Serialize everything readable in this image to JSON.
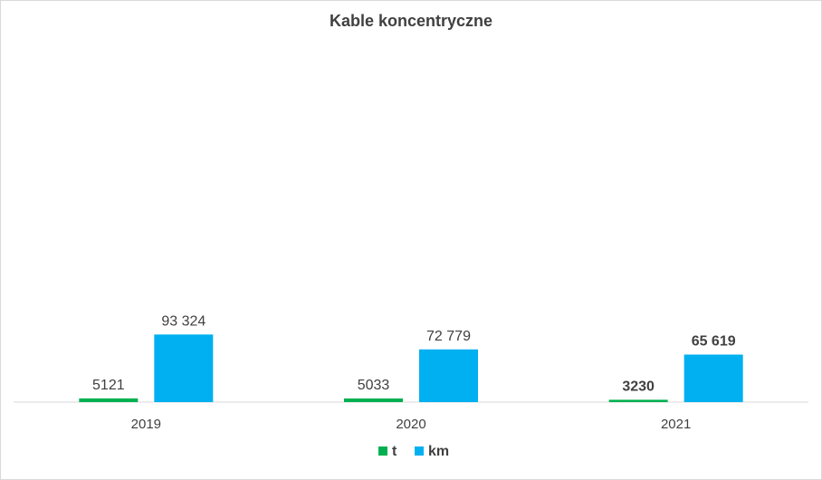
{
  "chart_data": {
    "type": "bar",
    "title": "Kable koncentryczne",
    "categories": [
      "2019",
      "2020",
      "2021"
    ],
    "series": [
      {
        "name": "t",
        "color": "#00b050",
        "values": [
          5121,
          5033,
          3230
        ],
        "labels": [
          "5121",
          "5033",
          "3230"
        ],
        "bold_labels": [
          false,
          false,
          true
        ]
      },
      {
        "name": "km",
        "color": "#00b0f0",
        "values": [
          93324,
          72779,
          65619
        ],
        "labels": [
          "93 324",
          "72 779",
          "65 619"
        ],
        "bold_labels": [
          false,
          false,
          true
        ]
      }
    ],
    "ylim": [
      0,
      500000
    ],
    "grid": false,
    "legend_position": "bottom"
  }
}
